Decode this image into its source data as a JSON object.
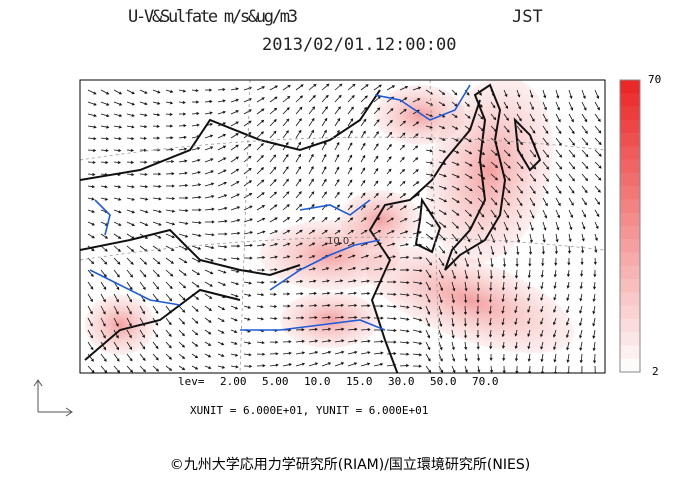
{
  "header": {
    "title": "U-V&Sulfate m/s&ug/m3",
    "zone": "JST",
    "datetime": "2013/02/01.12:00:00"
  },
  "colorbar": {
    "max_label": "70",
    "min_label": "2"
  },
  "map": {
    "contour_label": "10.0"
  },
  "levels": {
    "prefix": "lev=",
    "values": [
      "2.00",
      "5.00",
      "10.0",
      "15.0",
      "30.0",
      "50.0",
      "70.0"
    ]
  },
  "units": "XUNIT = 6.000E+01, YUNIT = 6.000E+01",
  "credit": "©九州大学応用力学研究所(RIAM)/国立環境研究所(NIES)"
}
